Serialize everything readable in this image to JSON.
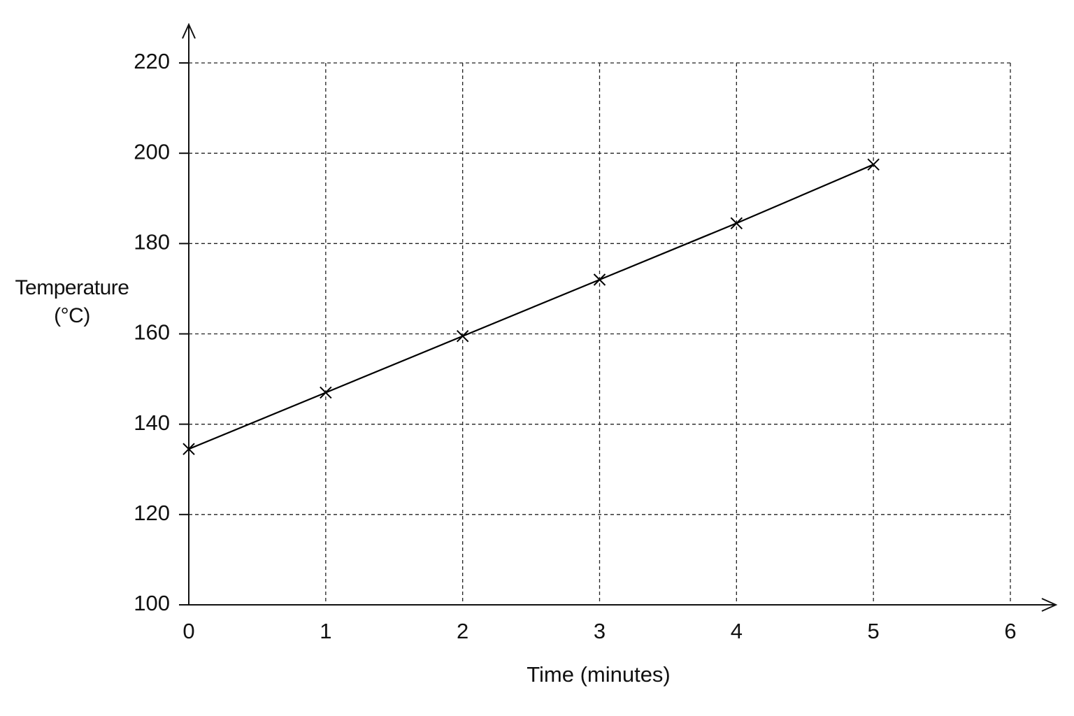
{
  "chart_data": {
    "type": "line",
    "x_label": "Time (minutes)",
    "y_label": "Temperature (°C)",
    "x": [
      0,
      1,
      2,
      3,
      4,
      5
    ],
    "values": [
      134.5,
      147,
      159.5,
      172,
      184.5,
      197.5
    ],
    "color": "#000000",
    "marker": "x",
    "xlim": [
      0,
      6
    ],
    "xticks": [
      0,
      1,
      2,
      3,
      4,
      5,
      6
    ],
    "ylim": [
      100,
      220
    ],
    "yticks": [
      100,
      120,
      140,
      160,
      180,
      200,
      220
    ],
    "grid": true
  }
}
